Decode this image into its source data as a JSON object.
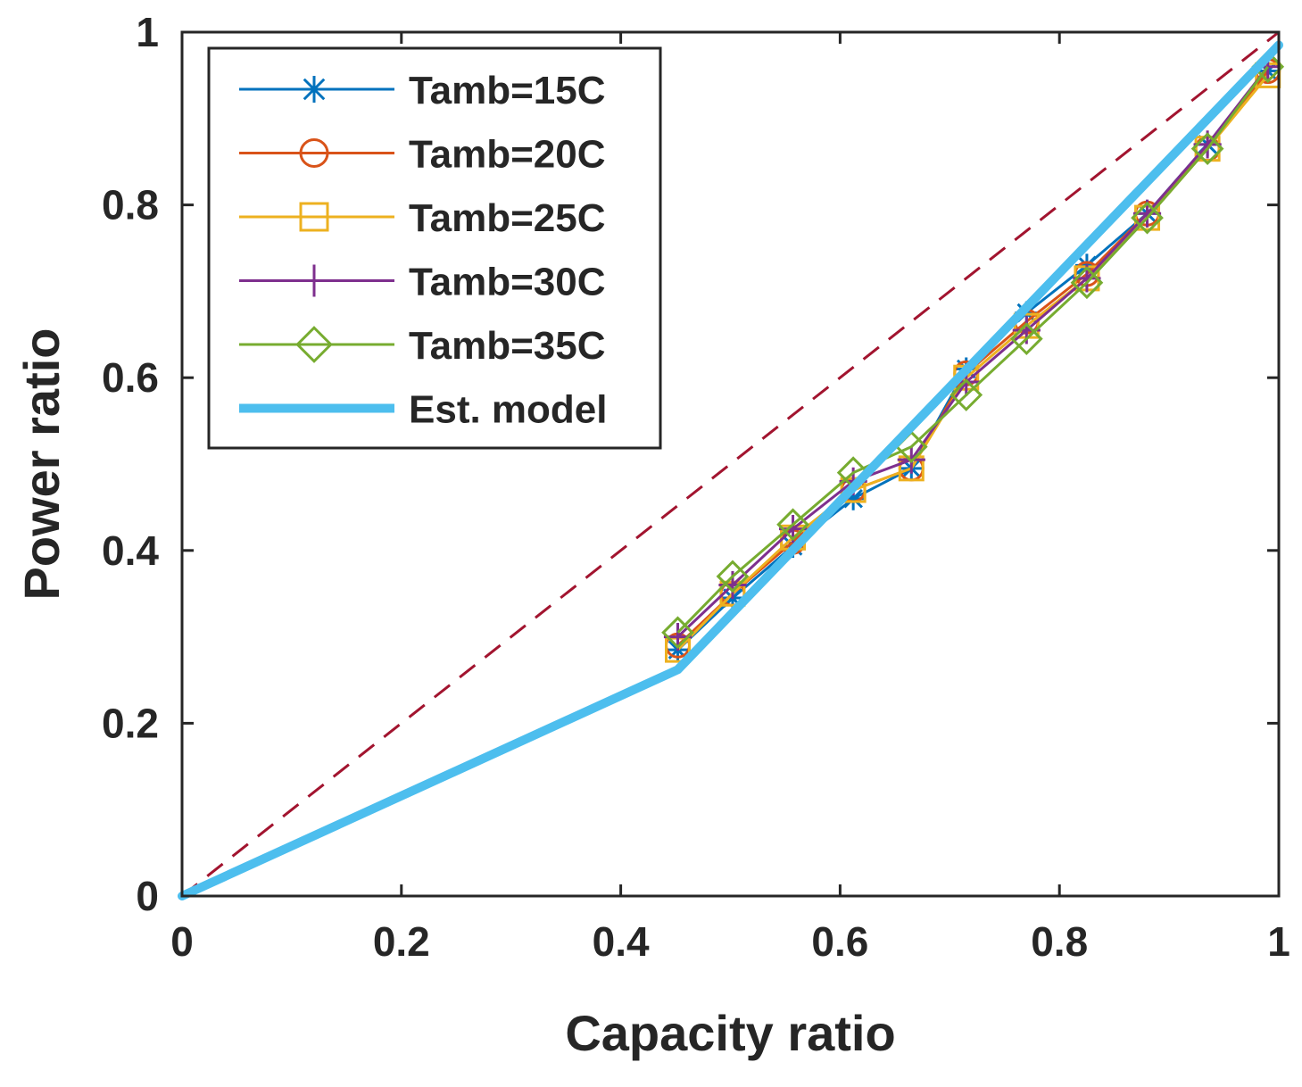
{
  "chart_data": {
    "type": "line",
    "title": "",
    "xlabel": "Capacity ratio",
    "ylabel": "Power ratio",
    "xlim": [
      0,
      1
    ],
    "ylim": [
      0,
      1
    ],
    "xticks": [
      0,
      0.2,
      0.4,
      0.6,
      0.8,
      1
    ],
    "yticks": [
      0,
      0.2,
      0.4,
      0.6,
      0.8,
      1
    ],
    "xtick_labels": [
      "0",
      "0.2",
      "0.4",
      "0.6",
      "0.8",
      "1"
    ],
    "ytick_labels": [
      "0",
      "0.2",
      "0.4",
      "0.6",
      "0.8",
      "1"
    ],
    "grid": false,
    "legend_position": "top-left",
    "x": [
      0.452,
      0.502,
      0.557,
      0.612,
      0.665,
      0.715,
      0.77,
      0.825,
      0.88,
      0.935,
      0.99
    ],
    "series": [
      {
        "name": "Tamb=15C",
        "color": "#0072BD",
        "marker": "asterisk",
        "values": [
          0.285,
          0.345,
          0.405,
          0.46,
          0.495,
          0.61,
          0.675,
          0.73,
          0.79,
          0.87,
          0.955
        ]
      },
      {
        "name": "Tamb=20C",
        "color": "#D95319",
        "marker": "circle",
        "values": [
          0.29,
          0.35,
          0.41,
          0.47,
          0.495,
          0.605,
          0.665,
          0.72,
          0.79,
          0.865,
          0.955
        ]
      },
      {
        "name": "Tamb=25C",
        "color": "#EDB120",
        "marker": "square",
        "values": [
          0.285,
          0.35,
          0.415,
          0.47,
          0.495,
          0.6,
          0.66,
          0.715,
          0.785,
          0.865,
          0.95
        ]
      },
      {
        "name": "Tamb=30C",
        "color": "#7E2F8E",
        "marker": "plus",
        "values": [
          0.3,
          0.36,
          0.425,
          0.48,
          0.505,
          0.595,
          0.655,
          0.715,
          0.79,
          0.87,
          0.96
        ]
      },
      {
        "name": "Tamb=35C",
        "color": "#77AC30",
        "marker": "diamond",
        "values": [
          0.305,
          0.37,
          0.43,
          0.49,
          0.52,
          0.58,
          0.645,
          0.71,
          0.785,
          0.865,
          0.96
        ]
      }
    ],
    "est_model": {
      "name": "Est. model",
      "color": "#4DBEEE",
      "x": [
        0,
        0.452,
        1
      ],
      "y": [
        0,
        0.262,
        0.985
      ]
    },
    "reference_line": {
      "color": "#A2142F",
      "style": "dashed",
      "x": [
        0,
        1
      ],
      "y": [
        0,
        1
      ]
    }
  }
}
